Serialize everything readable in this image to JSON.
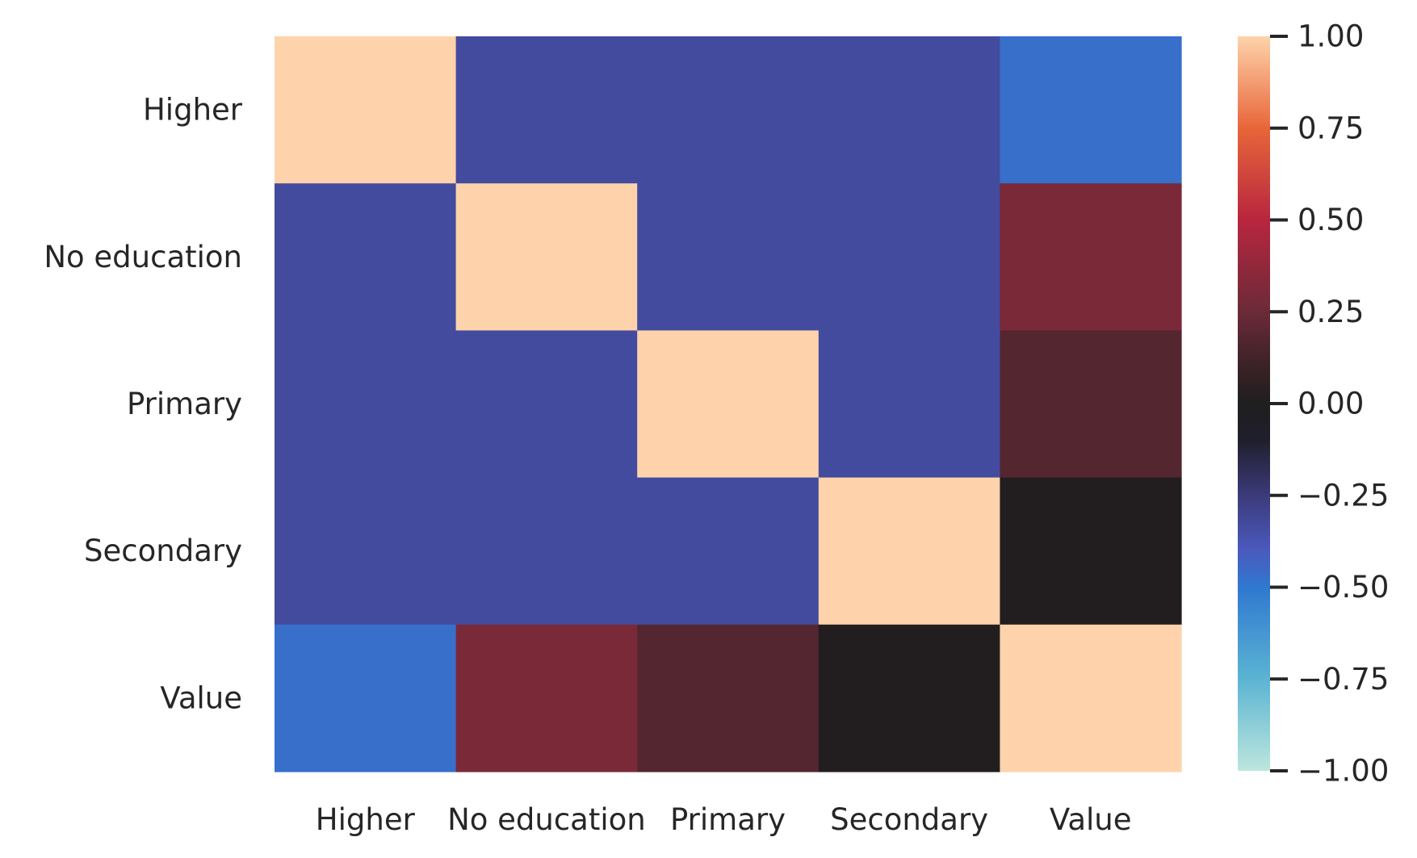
{
  "chart_data": {
    "type": "heatmap",
    "title": "",
    "xlabel": "",
    "ylabel": "",
    "rows": [
      "Higher",
      "No education",
      "Primary",
      "Secondary",
      "Value"
    ],
    "columns": [
      "Higher",
      "No education",
      "Primary",
      "Secondary",
      "Value"
    ],
    "values": [
      [
        1.0,
        -0.33,
        -0.33,
        -0.33,
        -0.47
      ],
      [
        -0.33,
        1.0,
        -0.33,
        -0.33,
        0.3
      ],
      [
        -0.33,
        -0.33,
        1.0,
        -0.33,
        0.18
      ],
      [
        -0.33,
        -0.33,
        -0.33,
        1.0,
        0.01
      ],
      [
        -0.47,
        0.3,
        0.18,
        0.01,
        1.0
      ]
    ],
    "colorbar": {
      "vmin": -1.0,
      "vmax": 1.0,
      "colormap": "icefire",
      "ticks": [
        "1.00",
        "0.75",
        "0.50",
        "0.25",
        "0.00",
        "−0.25",
        "−0.50",
        "−0.75",
        "−1.00"
      ],
      "tick_values": [
        1.0,
        0.75,
        0.5,
        0.25,
        0.0,
        -0.25,
        -0.5,
        -0.75,
        -1.0
      ],
      "position": "right"
    },
    "grid": false,
    "colors": {
      "stops": [
        [
          -1.0,
          "#bde6dd"
        ],
        [
          -0.75,
          "#5bb4d3"
        ],
        [
          -0.5,
          "#2f78d0"
        ],
        [
          -0.4,
          "#4a5abd"
        ],
        [
          -0.25,
          "#3c3a7a"
        ],
        [
          -0.1,
          "#1f1f2c"
        ],
        [
          0.0,
          "#1f1e1f"
        ],
        [
          0.1,
          "#3a2226"
        ],
        [
          0.25,
          "#6b2a38"
        ],
        [
          0.5,
          "#b8263e"
        ],
        [
          0.75,
          "#e8663a"
        ],
        [
          1.0,
          "#fed3ab"
        ]
      ]
    }
  }
}
